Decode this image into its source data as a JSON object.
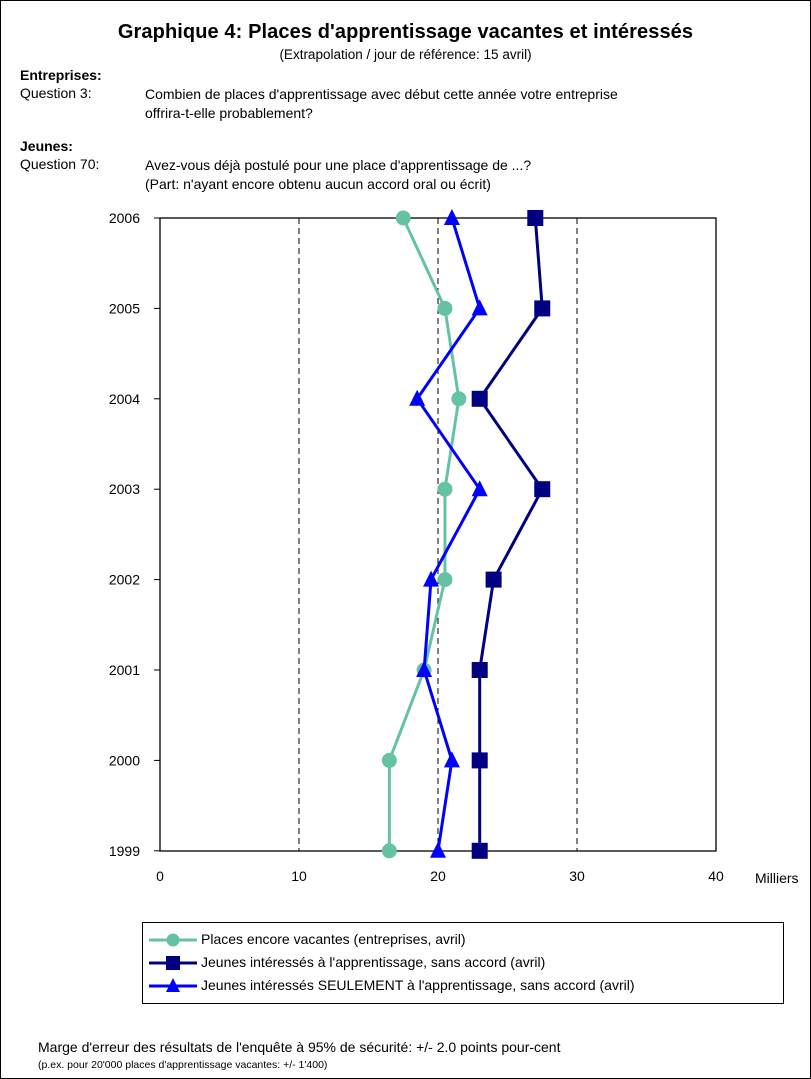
{
  "title": "Graphique 4: Places d'apprentissage vacantes et intéressés",
  "subtitle": "(Extrapolation / jour de référence: 15 avril)",
  "sections": [
    {
      "heading": "Entreprises:",
      "question_label": "Question 3:",
      "question_lines": [
        "Combien de places d'apprentissage avec début cette année votre entreprise",
        "offrira-t-elle probablement?"
      ]
    },
    {
      "heading": "Jeunes:",
      "question_label": "Question 70:",
      "question_lines": [
        "Avez-vous déjà postulé pour une place d'apprentissage de ...?",
        "(Part: n'ayant encore obtenu aucun accord oral ou écrit)"
      ]
    }
  ],
  "chart_data": {
    "type": "line",
    "orientation": "horizontal-values",
    "categories": [
      "2006",
      "2005",
      "2004",
      "2003",
      "2002",
      "2001",
      "2000",
      "1999"
    ],
    "x_ticks": [
      "0",
      "10",
      "20",
      "30",
      "40"
    ],
    "xlim": [
      0,
      40
    ],
    "x_unit": "Milliers",
    "grid": "vertical dashed at 10, 20, 30",
    "series": [
      {
        "name": "Places encore vacantes (entreprises, avril)",
        "color": "#66c2a5",
        "marker": "circle",
        "values": [
          17.5,
          20.5,
          21.5,
          20.5,
          20.5,
          19.0,
          16.5,
          16.5
        ]
      },
      {
        "name": "Jeunes intéressés à l'apprentissage, sans accord (avril)",
        "color": "#000080",
        "marker": "square",
        "values": [
          27.0,
          27.5,
          23.0,
          27.5,
          24.0,
          23.0,
          23.0,
          23.0
        ]
      },
      {
        "name": "Jeunes intéressés SEULEMENT à l'apprentissage, sans accord (avril)",
        "color": "#0000ff",
        "marker": "triangle",
        "values": [
          21.0,
          23.0,
          18.5,
          23.0,
          19.5,
          19.0,
          21.0,
          20.0
        ]
      }
    ],
    "legend_position": "bottom"
  },
  "footnote": {
    "line1": "Marge d'erreur des résultats de l'enquête à 95% de sécurité: +/- 2.0 points pour-cent",
    "line2": "(p.ex. pour 20'000 places d'apprentissage vacantes: +/- 1'400)"
  }
}
